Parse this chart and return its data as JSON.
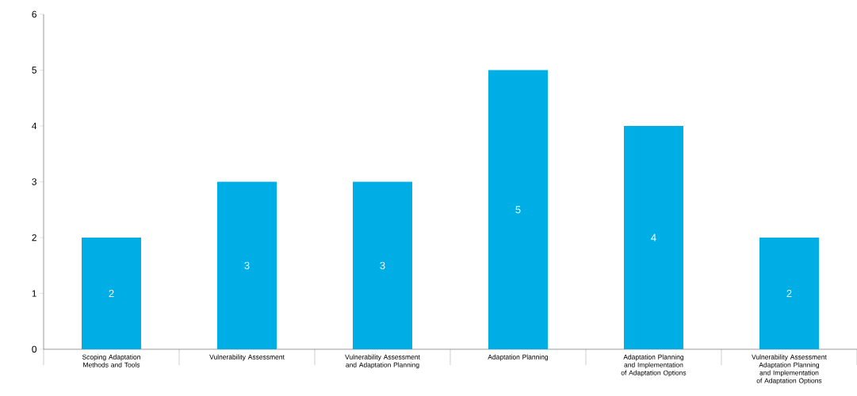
{
  "chart_data": {
    "type": "bar",
    "categories": [
      "Scoping Adaptation Methods and Tools",
      "Vulnerability Assessment",
      "Vulnerability Assessment and Adaptation Planning",
      "Adaptation Planning",
      "Adaptation Planning and Implementation of Adaptation Options",
      "Vulnerability Assessment Adaptation Planning and Implementation of Adaptation Options"
    ],
    "values": [
      2,
      3,
      3,
      5,
      4,
      2
    ],
    "color": "#00aee6",
    "ylim": [
      0,
      6
    ],
    "yticks": [
      0,
      1,
      2,
      3,
      4,
      5,
      6
    ],
    "grid": false,
    "data_labels": true
  }
}
